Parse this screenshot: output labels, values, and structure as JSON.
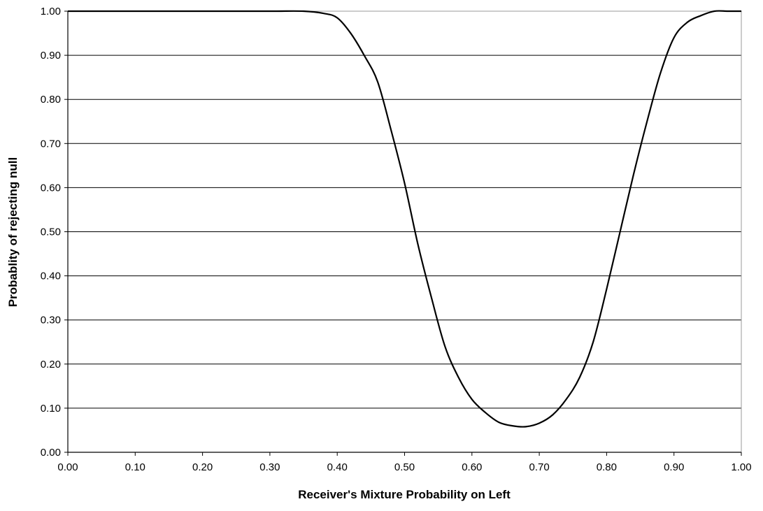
{
  "chart_data": {
    "type": "line",
    "title": "",
    "xlabel": "Receiver's Mixture Probability on Left",
    "ylabel": "Probablity of rejecting null",
    "xlim": [
      0,
      1
    ],
    "ylim": [
      0,
      1
    ],
    "x_ticks": [
      "0.00",
      "0.10",
      "0.20",
      "0.30",
      "0.40",
      "0.50",
      "0.60",
      "0.70",
      "0.80",
      "0.90",
      "1.00"
    ],
    "y_ticks": [
      "0.00",
      "0.10",
      "0.20",
      "0.30",
      "0.40",
      "0.50",
      "0.60",
      "0.70",
      "0.80",
      "0.90",
      "1.00"
    ],
    "grid": "horizontal",
    "legend": "none",
    "line_color": "#000000",
    "series": [
      {
        "x": [
          0.0,
          0.1,
          0.2,
          0.3,
          0.35,
          0.38,
          0.4,
          0.42,
          0.44,
          0.46,
          0.48,
          0.5,
          0.52,
          0.54,
          0.56,
          0.58,
          0.6,
          0.62,
          0.64,
          0.66,
          0.68,
          0.7,
          0.72,
          0.74,
          0.76,
          0.78,
          0.8,
          0.82,
          0.84,
          0.86,
          0.88,
          0.9,
          0.92,
          0.94,
          0.96,
          0.98,
          1.0
        ],
        "y": [
          1.0,
          1.0,
          1.0,
          1.0,
          1.0,
          0.995,
          0.985,
          0.95,
          0.9,
          0.84,
          0.73,
          0.61,
          0.47,
          0.35,
          0.24,
          0.17,
          0.12,
          0.09,
          0.068,
          0.06,
          0.058,
          0.066,
          0.085,
          0.12,
          0.17,
          0.25,
          0.37,
          0.5,
          0.63,
          0.75,
          0.86,
          0.94,
          0.975,
          0.99,
          1.0,
          1.0,
          1.0
        ]
      }
    ]
  }
}
